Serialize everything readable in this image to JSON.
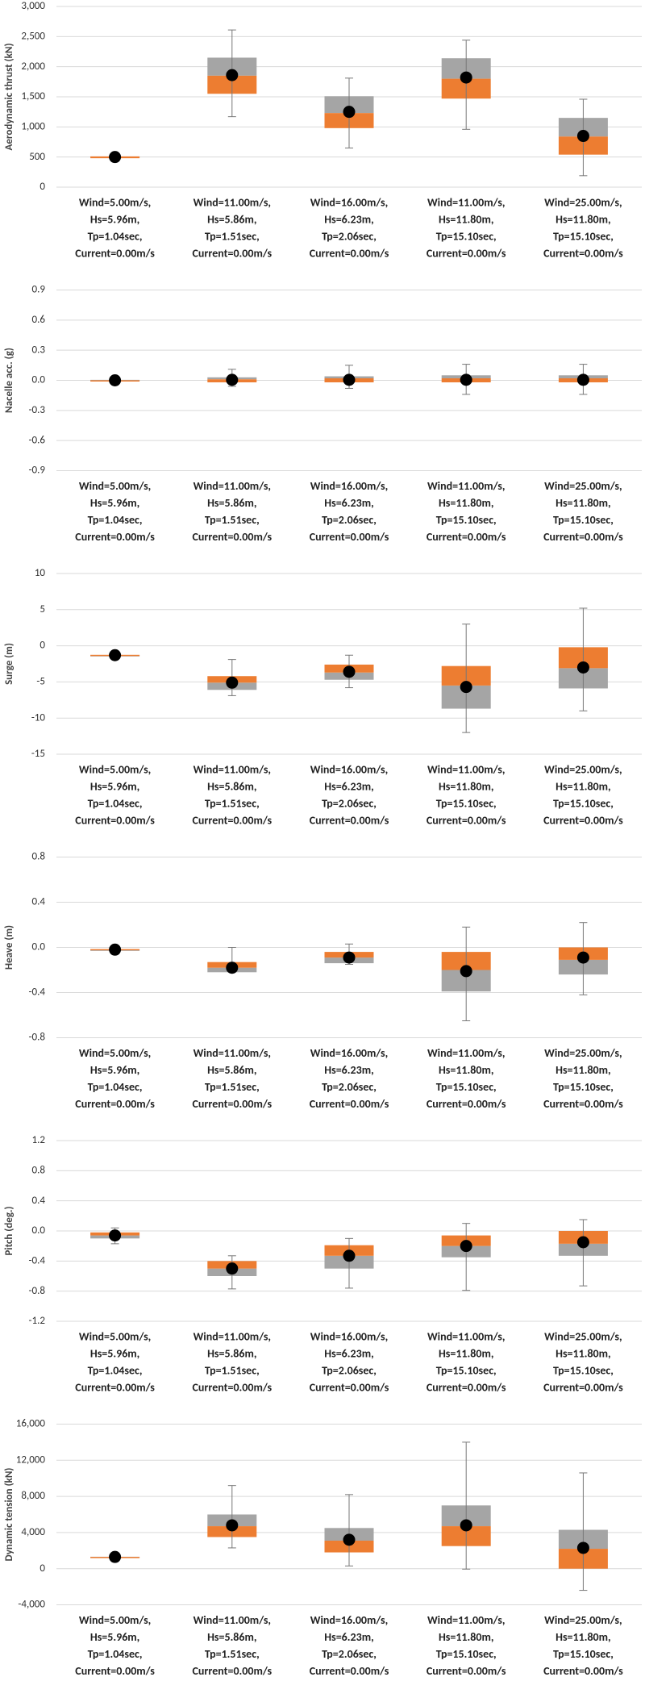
{
  "chart_data": [
    {
      "type": "box",
      "ylabel": "Aerodynamic thrust (kN)",
      "categories": [
        [
          "Wind=5.00m/s,",
          "Hs=5.96m,",
          "Tp=1.04sec,",
          "Current=0.00m/s"
        ],
        [
          "Wind=11.00m/s,",
          "Hs=5.86m,",
          "Tp=1.51sec,",
          "Current=0.00m/s"
        ],
        [
          "Wind=16.00m/s,",
          "Hs=6.23m,",
          "Tp=2.06sec,",
          "Current=0.00m/s"
        ],
        [
          "Wind=11.00m/s,",
          "Hs=11.80m,",
          "Tp=15.10sec,",
          "Current=0.00m/s"
        ],
        [
          "Wind=25.00m/s,",
          "Hs=11.80m,",
          "Tp=15.10sec,",
          "Current=0.00m/s"
        ]
      ],
      "whisker_min": [
        480,
        1170,
        650,
        960,
        190
      ],
      "whisker_max": [
        520,
        2610,
        1810,
        2440,
        1460
      ],
      "orange_range": [
        [
          480,
          510
        ],
        [
          1550,
          1850
        ],
        [
          980,
          1230
        ],
        [
          1470,
          1800
        ],
        [
          540,
          840
        ]
      ],
      "grey_range": [
        [
          510,
          510
        ],
        [
          1850,
          2150
        ],
        [
          1230,
          1510
        ],
        [
          1800,
          2140
        ],
        [
          840,
          1150
        ]
      ],
      "mean": [
        500,
        1860,
        1250,
        1820,
        850
      ],
      "ylim": [
        0,
        3000
      ],
      "yticks": [
        0,
        500,
        {
          "value": 1000,
          "label": "1,000"
        },
        {
          "value": 1500,
          "label": "1,500"
        },
        {
          "value": 2000,
          "label": "2,000"
        },
        {
          "value": 2500,
          "label": "2,500"
        },
        {
          "value": 3000,
          "label": "3,000"
        }
      ],
      "orange_color": "#ed7d31",
      "grey_color": "#a5a5a5",
      "whisker_color": "#777777",
      "mean_color": "#000000",
      "grid": true
    },
    {
      "type": "box",
      "ylabel": "Nacelle acc. (g)",
      "categories": [
        [
          "Wind=5.00m/s,",
          "Hs=5.96m,",
          "Tp=1.04sec,",
          "Current=0.00m/s"
        ],
        [
          "Wind=11.00m/s,",
          "Hs=5.86m,",
          "Tp=1.51sec,",
          "Current=0.00m/s"
        ],
        [
          "Wind=16.00m/s,",
          "Hs=6.23m,",
          "Tp=2.06sec,",
          "Current=0.00m/s"
        ],
        [
          "Wind=11.00m/s,",
          "Hs=11.80m,",
          "Tp=15.10sec,",
          "Current=0.00m/s"
        ],
        [
          "Wind=25.00m/s,",
          "Hs=11.80m,",
          "Tp=15.10sec,",
          "Current=0.00m/s"
        ]
      ],
      "whisker_min": [
        -0.005,
        -0.06,
        -0.08,
        -0.14,
        -0.14
      ],
      "whisker_max": [
        0.005,
        0.11,
        0.15,
        0.16,
        0.16
      ],
      "orange_range": [
        [
          -0.005,
          0
        ],
        [
          -0.02,
          0.01
        ],
        [
          -0.02,
          0.02
        ],
        [
          -0.02,
          0.02
        ],
        [
          -0.02,
          0.02
        ]
      ],
      "grey_range": [
        [
          0,
          0.005
        ],
        [
          0.01,
          0.03
        ],
        [
          0.02,
          0.04
        ],
        [
          0.02,
          0.05
        ],
        [
          0.02,
          0.05
        ]
      ],
      "mean": [
        0,
        0.005,
        0.005,
        0.005,
        0.005
      ],
      "ylim": [
        -0.9,
        0.9
      ],
      "yticks": [
        -0.9,
        -0.6,
        -0.3,
        {
          "value": 0,
          "label": "0.0"
        },
        0.3,
        0.6,
        0.9
      ],
      "orange_color": "#ed7d31",
      "grey_color": "#a5a5a5",
      "whisker_color": "#777777",
      "mean_color": "#000000",
      "grid": true
    },
    {
      "type": "box",
      "ylabel": "Surge (m)",
      "categories": [
        [
          "Wind=5.00m/s,",
          "Hs=5.96m,",
          "Tp=1.04sec,",
          "Current=0.00m/s"
        ],
        [
          "Wind=11.00m/s,",
          "Hs=5.86m,",
          "Tp=1.51sec,",
          "Current=0.00m/s"
        ],
        [
          "Wind=16.00m/s,",
          "Hs=6.23m,",
          "Tp=2.06sec,",
          "Current=0.00m/s"
        ],
        [
          "Wind=11.00m/s,",
          "Hs=11.80m,",
          "Tp=15.10sec,",
          "Current=0.00m/s"
        ],
        [
          "Wind=25.00m/s,",
          "Hs=11.80m,",
          "Tp=15.10sec,",
          "Current=0.00m/s"
        ]
      ],
      "whisker_min": [
        -1.4,
        -6.9,
        -5.8,
        -12,
        -9
      ],
      "whisker_max": [
        -1.2,
        -1.9,
        -1.3,
        3,
        5.2
      ],
      "orange_range": [
        [
          -1.3,
          -1.25
        ],
        [
          -5.1,
          -4.2
        ],
        [
          -3.7,
          -2.6
        ],
        [
          -5.5,
          -2.8
        ],
        [
          -3.1,
          -0.2
        ]
      ],
      "grey_range": [
        [
          -1.35,
          -1.3
        ],
        [
          -6.1,
          -5.1
        ],
        [
          -4.7,
          -3.7
        ],
        [
          -8.7,
          -5.5
        ],
        [
          -5.9,
          -3.1
        ]
      ],
      "mean": [
        -1.3,
        -5.1,
        -3.6,
        -5.7,
        -3
      ],
      "ylim": [
        -15,
        10
      ],
      "yticks": [
        -15,
        -10,
        -5,
        0,
        5,
        10
      ],
      "orange_color": "#ed7d31",
      "grey_color": "#a5a5a5",
      "whisker_color": "#777777",
      "mean_color": "#000000",
      "grid": true
    },
    {
      "type": "box",
      "ylabel": "Heave (m)",
      "categories": [
        [
          "Wind=5.00m/s,",
          "Hs=5.96m,",
          "Tp=1.04sec,",
          "Current=0.00m/s"
        ],
        [
          "Wind=11.00m/s,",
          "Hs=5.86m,",
          "Tp=1.51sec,",
          "Current=0.00m/s"
        ],
        [
          "Wind=16.00m/s,",
          "Hs=6.23m,",
          "Tp=2.06sec,",
          "Current=0.00m/s"
        ],
        [
          "Wind=11.00m/s,",
          "Hs=11.80m,",
          "Tp=15.10sec,",
          "Current=0.00m/s"
        ],
        [
          "Wind=25.00m/s,",
          "Hs=11.80m,",
          "Tp=15.10sec,",
          "Current=0.00m/s"
        ]
      ],
      "whisker_min": [
        -0.025,
        -0.2,
        -0.15,
        -0.65,
        -0.42
      ],
      "whisker_max": [
        -0.015,
        0,
        0.03,
        0.18,
        0.22
      ],
      "orange_range": [
        [
          -0.02,
          -0.015
        ],
        [
          -0.18,
          -0.13
        ],
        [
          -0.09,
          -0.04
        ],
        [
          -0.2,
          -0.04
        ],
        [
          -0.11,
          0
        ]
      ],
      "grey_range": [
        [
          -0.025,
          -0.02
        ],
        [
          -0.22,
          -0.18
        ],
        [
          -0.14,
          -0.09
        ],
        [
          -0.39,
          -0.2
        ],
        [
          -0.24,
          -0.11
        ]
      ],
      "mean": [
        -0.02,
        -0.18,
        -0.09,
        -0.21,
        -0.09
      ],
      "ylim": [
        -0.8,
        0.8
      ],
      "yticks": [
        -0.8,
        -0.4,
        {
          "value": 0,
          "label": "0.0"
        },
        0.4,
        0.8
      ],
      "orange_color": "#ed7d31",
      "grey_color": "#a5a5a5",
      "whisker_color": "#777777",
      "mean_color": "#000000",
      "grid": true
    },
    {
      "type": "box",
      "ylabel": "Pitch (deg.)",
      "categories": [
        [
          "Wind=5.00m/s,",
          "Hs=5.96m,",
          "Tp=1.04sec,",
          "Current=0.00m/s"
        ],
        [
          "Wind=11.00m/s,",
          "Hs=5.86m,",
          "Tp=1.51sec,",
          "Current=0.00m/s"
        ],
        [
          "Wind=16.00m/s,",
          "Hs=6.23m,",
          "Tp=2.06sec,",
          "Current=0.00m/s"
        ],
        [
          "Wind=11.00m/s,",
          "Hs=11.80m,",
          "Tp=15.10sec,",
          "Current=0.00m/s"
        ],
        [
          "Wind=25.00m/s,",
          "Hs=11.80m,",
          "Tp=15.10sec,",
          "Current=0.00m/s"
        ]
      ],
      "whisker_min": [
        -0.17,
        -0.77,
        -0.76,
        -0.79,
        -0.73
      ],
      "whisker_max": [
        0.04,
        -0.33,
        -0.1,
        0.1,
        0.15
      ],
      "orange_range": [
        [
          -0.06,
          -0.02
        ],
        [
          -0.5,
          -0.4
        ],
        [
          -0.33,
          -0.19
        ],
        [
          -0.2,
          -0.06
        ],
        [
          -0.17,
          0
        ]
      ],
      "grey_range": [
        [
          -0.1,
          -0.06
        ],
        [
          -0.6,
          -0.5
        ],
        [
          -0.5,
          -0.33
        ],
        [
          -0.35,
          -0.2
        ],
        [
          -0.33,
          -0.17
        ]
      ],
      "mean": [
        -0.06,
        -0.5,
        -0.33,
        -0.2,
        -0.15
      ],
      "ylim": [
        -1.2,
        1.2
      ],
      "yticks": [
        -1.2,
        -0.8,
        -0.4,
        {
          "value": 0,
          "label": "0.0"
        },
        0.4,
        0.8,
        1.2
      ],
      "orange_color": "#ed7d31",
      "grey_color": "#a5a5a5",
      "whisker_color": "#777777",
      "mean_color": "#000000",
      "grid": true
    },
    {
      "type": "box",
      "ylabel": "Dynamic tension (kN)",
      "categories": [
        [
          "Wind=5.00m/s,",
          "Hs=5.96m,",
          "Tp=1.04sec,",
          "Current=0.00m/s"
        ],
        [
          "Wind=11.00m/s,",
          "Hs=5.86m,",
          "Tp=1.51sec,",
          "Current=0.00m/s"
        ],
        [
          "Wind=16.00m/s,",
          "Hs=6.23m,",
          "Tp=2.06sec,",
          "Current=0.00m/s"
        ],
        [
          "Wind=11.00m/s,",
          "Hs=11.80m,",
          "Tp=15.10sec,",
          "Current=0.00m/s"
        ],
        [
          "Wind=25.00m/s,",
          "Hs=11.80m,",
          "Tp=15.10sec,",
          "Current=0.00m/s"
        ]
      ],
      "whisker_min": [
        1250,
        2300,
        300,
        -50,
        -2400
      ],
      "whisker_max": [
        1350,
        9200,
        8200,
        14000,
        10600
      ],
      "orange_range": [
        [
          1280,
          1300
        ],
        [
          3500,
          4700
        ],
        [
          1800,
          3100
        ],
        [
          2500,
          4700
        ],
        [
          0,
          2200
        ]
      ],
      "grey_range": [
        [
          1300,
          1320
        ],
        [
          4700,
          6000
        ],
        [
          3100,
          4500
        ],
        [
          4700,
          7000
        ],
        [
          2200,
          4300
        ]
      ],
      "mean": [
        1300,
        4800,
        3200,
        4800,
        2300
      ],
      "ylim": [
        -4000,
        16000
      ],
      "yticks": [
        {
          "value": -4000,
          "label": "-4,000"
        },
        0,
        {
          "value": 4000,
          "label": "4,000"
        },
        {
          "value": 8000,
          "label": "8,000"
        },
        {
          "value": 12000,
          "label": "12,000"
        },
        {
          "value": 16000,
          "label": "16,000"
        }
      ],
      "orange_color": "#ed7d31",
      "grey_color": "#a5a5a5",
      "whisker_color": "#777777",
      "mean_color": "#000000",
      "grid": true
    }
  ]
}
